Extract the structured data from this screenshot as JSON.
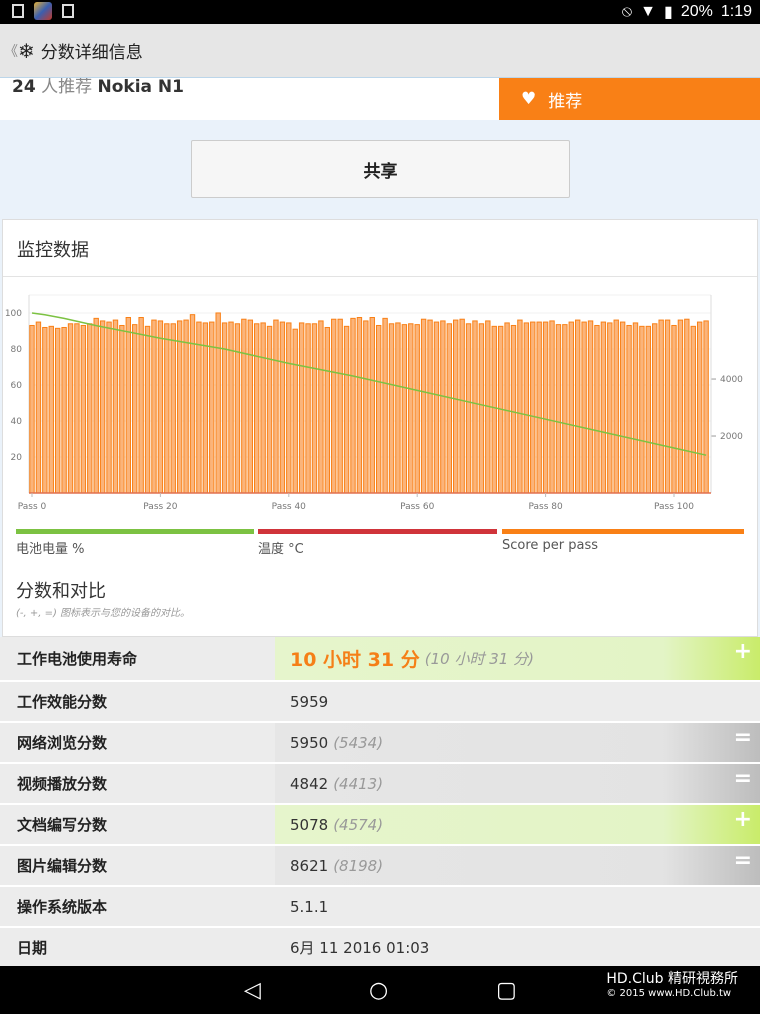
{
  "status": {
    "battery": "20%",
    "time": "1:19"
  },
  "appbar": {
    "title": "分数详细信息"
  },
  "recommend": {
    "count": "24",
    "text": "人推荐",
    "device": "Nokia N1",
    "button": "推荐"
  },
  "share": {
    "label": "共享"
  },
  "monitor": {
    "title": "监控数据"
  },
  "chart_data": {
    "type": "bar+line",
    "left_axis": {
      "ticks": [
        20,
        40,
        60,
        80,
        100
      ],
      "range": [
        0,
        110
      ]
    },
    "right_axis": {
      "ticks": [
        2000,
        4000
      ],
      "range": [
        0,
        6950
      ]
    },
    "x_ticks": [
      "Pass 0",
      "Pass 20",
      "Pass 40",
      "Pass 60",
      "Pass 80",
      "Pass 100"
    ],
    "series": [
      {
        "name": "Score per pass",
        "type": "bar",
        "axis": "right",
        "color": "#f98016",
        "values": [
          5880,
          6000,
          5810,
          5850,
          5780,
          5810,
          5940,
          5940,
          5880,
          5940,
          6130,
          6040,
          6000,
          6070,
          5880,
          6160,
          5910,
          6160,
          5850,
          6070,
          6040,
          5940,
          5940,
          6040,
          6070,
          6260,
          6000,
          5970,
          6000,
          6320,
          5970,
          6000,
          5940,
          6100,
          6070,
          5940,
          5970,
          5850,
          6070,
          6000,
          5970,
          5750,
          5970,
          5940,
          5940,
          6040,
          5810,
          6100,
          6100,
          5850,
          6130,
          6160,
          6040,
          6160,
          5880,
          6130,
          5940,
          5970,
          5910,
          5940,
          5910,
          6100,
          6070,
          6000,
          6040,
          5940,
          6070,
          6100,
          5940,
          6040,
          5940,
          6040,
          5850,
          5850,
          5970,
          5880,
          6070,
          5970,
          6000,
          6000,
          6000,
          6040,
          5910,
          5910,
          6000,
          6070,
          6000,
          6040,
          5880,
          6000,
          5970,
          6070,
          6000,
          5880,
          5970,
          5850,
          5850,
          5940,
          6070,
          6070,
          5880,
          6070,
          6100,
          5850,
          6000,
          6040
        ]
      },
      {
        "name": "电池电量 %",
        "type": "line",
        "axis": "left",
        "color": "#7cc242",
        "points": [
          [
            0,
            100
          ],
          [
            2,
            99
          ],
          [
            5,
            97
          ],
          [
            10,
            93
          ],
          [
            20,
            86
          ],
          [
            30,
            80
          ],
          [
            40,
            72
          ],
          [
            50,
            65
          ],
          [
            60,
            57
          ],
          [
            70,
            49
          ],
          [
            80,
            41
          ],
          [
            90,
            33
          ],
          [
            100,
            25
          ],
          [
            105,
            21
          ]
        ]
      },
      {
        "name": "温度 °C",
        "type": "line",
        "axis": "left",
        "color": "#d0343a",
        "points": []
      }
    ]
  },
  "legend": [
    {
      "label": "电池电量 %",
      "color": "#7cc242"
    },
    {
      "label": "温度 °C",
      "color": "#d0343a"
    },
    {
      "label": "Score per pass",
      "color": "#f98016"
    }
  ],
  "comparison": {
    "title": "分数和对比",
    "subtitle": "(-, +, =) 图标表示与您的设备的对比。"
  },
  "rows": [
    {
      "label": "工作电池使用寿命",
      "value": "10 小时 31 分",
      "compare": "(10 小时 31 分)",
      "mark": "+"
    },
    {
      "label": "工作效能分数",
      "value": "5959",
      "compare": "",
      "mark": ""
    },
    {
      "label": "网络浏览分数",
      "value": "5950",
      "compare": "(5434)",
      "mark": "="
    },
    {
      "label": "视频播放分数",
      "value": "4842",
      "compare": "(4413)",
      "mark": "="
    },
    {
      "label": "文档编写分数",
      "value": "5078",
      "compare": "(4574)",
      "mark": "+"
    },
    {
      "label": "图片编辑分数",
      "value": "8621",
      "compare": "(8198)",
      "mark": "="
    },
    {
      "label": "操作系统版本",
      "value": "5.1.1",
      "compare": "",
      "mark": ""
    },
    {
      "label": "日期",
      "value": "6月 11 2016 01:03",
      "compare": "",
      "mark": ""
    }
  ],
  "watermark": {
    "line1": "HD.Club 精研視務所",
    "line2": "© 2015  www.HD.Club.tw"
  }
}
